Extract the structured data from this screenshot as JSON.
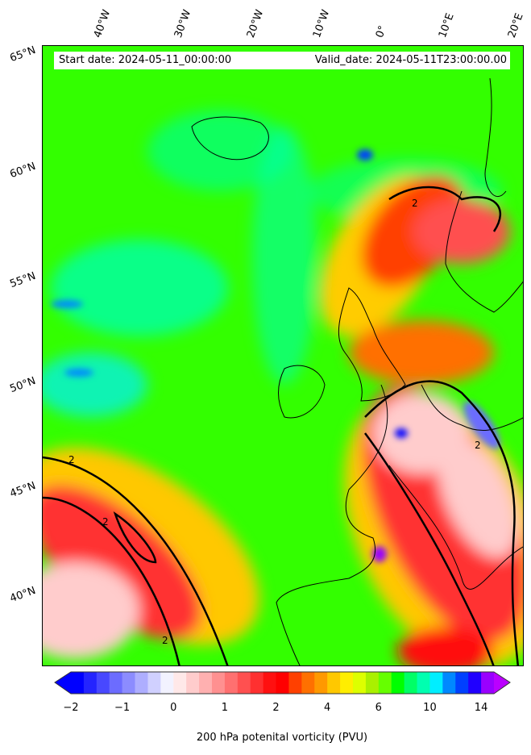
{
  "map": {
    "start_date": "Start date: 2024-05-11_00:00:00",
    "valid_date": "Valid_date: 2024-05-11T23:00:00.00",
    "lon_labels": [
      "40°W",
      "30°W",
      "20°W",
      "10°W",
      "0°",
      "10°E",
      "20°E"
    ],
    "lat_labels": [
      "65°N",
      "60°N",
      "55°N",
      "50°N",
      "45°N",
      "40°N"
    ],
    "contour_label": "2"
  },
  "colorbar": {
    "label": "200 hPa potenital vorticity (PVU)",
    "ticks": [
      "−2",
      "−1",
      "0",
      "1",
      "2",
      "4",
      "6",
      "10",
      "14"
    ],
    "colors": [
      "#0000ff",
      "#2424ff",
      "#4848ff",
      "#6c6cff",
      "#8c8cff",
      "#aeaeff",
      "#d0d0ff",
      "#f2f2ff",
      "#ffe8e8",
      "#ffcccc",
      "#ffb0b0",
      "#ff9090",
      "#ff7070",
      "#ff5050",
      "#ff3030",
      "#ff1010",
      "#ff0000",
      "#ff4000",
      "#ff7000",
      "#ff9900",
      "#ffc800",
      "#ffee00",
      "#ddff00",
      "#aaf000",
      "#66ff00",
      "#00ff00",
      "#00ff66",
      "#00ffb0",
      "#00eeff",
      "#0088ff",
      "#0040ff",
      "#2000ff",
      "#9900ff"
    ],
    "under_color": "#0000ff",
    "over_color": "#bb00ff"
  }
}
